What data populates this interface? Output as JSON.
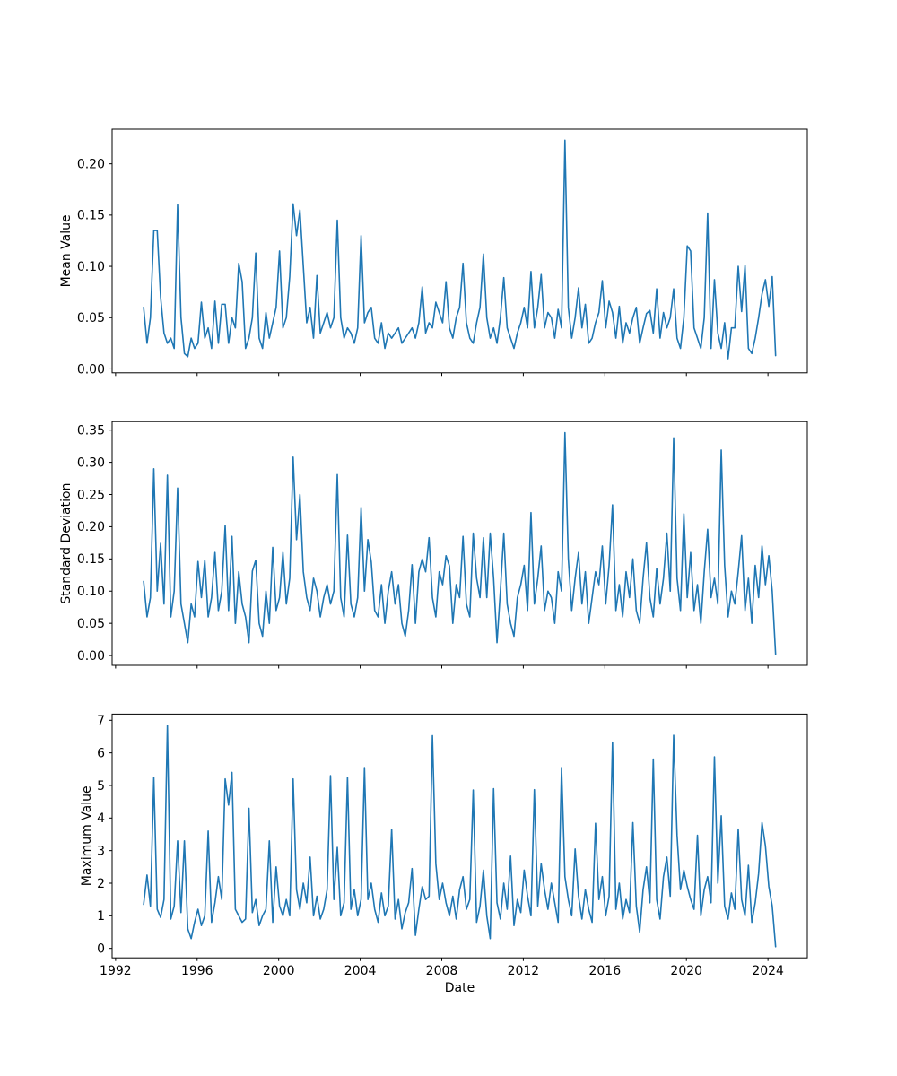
{
  "figure": {
    "background": "#ffffff",
    "line_color": "#1f77b4",
    "axis_color": "#000000",
    "xlabel": "Date",
    "xlim": [
      1991.83,
      2025.93
    ],
    "xticks": [
      1992,
      1996,
      2000,
      2004,
      2008,
      2012,
      2016,
      2020,
      2024
    ],
    "xtick_labels": [
      "1992",
      "1996",
      "2000",
      "2004",
      "2008",
      "2012",
      "2016",
      "2020",
      "2024"
    ]
  },
  "chart_data": [
    {
      "type": "line",
      "title": "",
      "xlabel": "",
      "ylabel": "Mean Value",
      "legend": null,
      "grid": false,
      "line_color": "#1f77b4",
      "xlim": [
        1991.83,
        2025.93
      ],
      "ylim": [
        -0.0038,
        0.2338
      ],
      "yticks": [
        0.0,
        0.05,
        0.1,
        0.15,
        0.2
      ],
      "ytick_labels": [
        "0.00",
        "0.05",
        "0.10",
        "0.15",
        "0.20"
      ],
      "xticks": [
        1992,
        1996,
        2000,
        2004,
        2008,
        2012,
        2016,
        2020,
        2024
      ],
      "xtick_labels": [
        "1992",
        "1996",
        "2000",
        "2004",
        "2008",
        "2012",
        "2016",
        "2020",
        "2024"
      ],
      "show_xtick_labels": false,
      "x_unit": "decimal_year",
      "x_start": 1993.375,
      "x_step": 0.1666667,
      "values": [
        0.06,
        0.025,
        0.05,
        0.135,
        0.135,
        0.07,
        0.035,
        0.025,
        0.03,
        0.02,
        0.16,
        0.05,
        0.015,
        0.012,
        0.03,
        0.02,
        0.025,
        0.065,
        0.03,
        0.04,
        0.02,
        0.066,
        0.025,
        0.063,
        0.063,
        0.025,
        0.05,
        0.04,
        0.103,
        0.085,
        0.02,
        0.03,
        0.05,
        0.113,
        0.03,
        0.02,
        0.055,
        0.03,
        0.045,
        0.06,
        0.115,
        0.04,
        0.05,
        0.09,
        0.161,
        0.13,
        0.155,
        0.1,
        0.045,
        0.06,
        0.03,
        0.091,
        0.035,
        0.045,
        0.055,
        0.04,
        0.05,
        0.145,
        0.05,
        0.03,
        0.04,
        0.035,
        0.025,
        0.04,
        0.13,
        0.045,
        0.055,
        0.06,
        0.03,
        0.025,
        0.045,
        0.02,
        0.035,
        0.03,
        0.035,
        0.04,
        0.025,
        0.03,
        0.035,
        0.04,
        0.03,
        0.045,
        0.08,
        0.035,
        0.045,
        0.04,
        0.065,
        0.055,
        0.045,
        0.085,
        0.04,
        0.03,
        0.05,
        0.06,
        0.103,
        0.045,
        0.03,
        0.025,
        0.045,
        0.06,
        0.112,
        0.05,
        0.03,
        0.04,
        0.025,
        0.05,
        0.089,
        0.04,
        0.03,
        0.02,
        0.035,
        0.045,
        0.06,
        0.04,
        0.095,
        0.04,
        0.06,
        0.092,
        0.04,
        0.055,
        0.05,
        0.03,
        0.058,
        0.04,
        0.223,
        0.06,
        0.03,
        0.05,
        0.079,
        0.04,
        0.063,
        0.025,
        0.03,
        0.045,
        0.055,
        0.086,
        0.04,
        0.066,
        0.055,
        0.03,
        0.061,
        0.025,
        0.045,
        0.035,
        0.05,
        0.06,
        0.025,
        0.04,
        0.054,
        0.057,
        0.035,
        0.078,
        0.03,
        0.055,
        0.04,
        0.05,
        0.078,
        0.03,
        0.02,
        0.05,
        0.12,
        0.115,
        0.04,
        0.03,
        0.02,
        0.05,
        0.152,
        0.02,
        0.087,
        0.035,
        0.02,
        0.045,
        0.01,
        0.04,
        0.04,
        0.1,
        0.056,
        0.101,
        0.02,
        0.015,
        0.03,
        0.05,
        0.073,
        0.087,
        0.061,
        0.09,
        0.013
      ]
    },
    {
      "type": "line",
      "title": "",
      "xlabel": "",
      "ylabel": "Standard Deviation",
      "legend": null,
      "grid": false,
      "line_color": "#1f77b4",
      "xlim": [
        1991.83,
        2025.93
      ],
      "ylim": [
        -0.0152,
        0.3632
      ],
      "yticks": [
        0.0,
        0.05,
        0.1,
        0.15,
        0.2,
        0.25,
        0.3,
        0.35
      ],
      "ytick_labels": [
        "0.00",
        "0.05",
        "0.10",
        "0.15",
        "0.20",
        "0.25",
        "0.30",
        "0.35"
      ],
      "xticks": [
        1992,
        1996,
        2000,
        2004,
        2008,
        2012,
        2016,
        2020,
        2024
      ],
      "xtick_labels": [
        "1992",
        "1996",
        "2000",
        "2004",
        "2008",
        "2012",
        "2016",
        "2020",
        "2024"
      ],
      "show_xtick_labels": false,
      "x_unit": "decimal_year",
      "x_start": 1993.375,
      "x_step": 0.1666667,
      "values": [
        0.115,
        0.06,
        0.09,
        0.29,
        0.1,
        0.174,
        0.08,
        0.28,
        0.06,
        0.1,
        0.26,
        0.08,
        0.05,
        0.02,
        0.08,
        0.06,
        0.146,
        0.09,
        0.148,
        0.06,
        0.09,
        0.16,
        0.07,
        0.1,
        0.202,
        0.07,
        0.185,
        0.05,
        0.13,
        0.08,
        0.06,
        0.02,
        0.131,
        0.148,
        0.05,
        0.03,
        0.1,
        0.05,
        0.168,
        0.07,
        0.09,
        0.16,
        0.08,
        0.12,
        0.308,
        0.18,
        0.25,
        0.13,
        0.09,
        0.07,
        0.12,
        0.1,
        0.06,
        0.09,
        0.11,
        0.08,
        0.1,
        0.281,
        0.09,
        0.06,
        0.187,
        0.08,
        0.06,
        0.09,
        0.23,
        0.1,
        0.18,
        0.145,
        0.07,
        0.06,
        0.11,
        0.05,
        0.1,
        0.13,
        0.08,
        0.11,
        0.05,
        0.03,
        0.07,
        0.141,
        0.05,
        0.13,
        0.15,
        0.13,
        0.183,
        0.09,
        0.06,
        0.13,
        0.11,
        0.155,
        0.139,
        0.05,
        0.11,
        0.09,
        0.185,
        0.08,
        0.06,
        0.19,
        0.12,
        0.09,
        0.183,
        0.09,
        0.19,
        0.12,
        0.02,
        0.1,
        0.19,
        0.08,
        0.05,
        0.03,
        0.09,
        0.11,
        0.14,
        0.07,
        0.222,
        0.08,
        0.12,
        0.17,
        0.07,
        0.1,
        0.09,
        0.05,
        0.13,
        0.1,
        0.346,
        0.15,
        0.07,
        0.12,
        0.16,
        0.08,
        0.13,
        0.05,
        0.09,
        0.13,
        0.11,
        0.17,
        0.08,
        0.14,
        0.234,
        0.07,
        0.11,
        0.06,
        0.13,
        0.09,
        0.15,
        0.07,
        0.05,
        0.12,
        0.175,
        0.09,
        0.06,
        0.135,
        0.08,
        0.12,
        0.19,
        0.1,
        0.338,
        0.12,
        0.07,
        0.22,
        0.09,
        0.16,
        0.07,
        0.11,
        0.05,
        0.13,
        0.196,
        0.09,
        0.12,
        0.08,
        0.319,
        0.14,
        0.06,
        0.1,
        0.08,
        0.13,
        0.186,
        0.07,
        0.12,
        0.05,
        0.14,
        0.09,
        0.17,
        0.11,
        0.155,
        0.1,
        0.002
      ]
    },
    {
      "type": "line",
      "title": "",
      "xlabel": "Date",
      "ylabel": "Maximum Value",
      "legend": null,
      "grid": false,
      "line_color": "#1f77b4",
      "xlim": [
        1991.83,
        2025.93
      ],
      "ylim": [
        -0.29,
        7.19
      ],
      "yticks": [
        0,
        1,
        2,
        3,
        4,
        5,
        6,
        7
      ],
      "ytick_labels": [
        "0",
        "1",
        "2",
        "3",
        "4",
        "5",
        "6",
        "7"
      ],
      "xticks": [
        1992,
        1996,
        2000,
        2004,
        2008,
        2012,
        2016,
        2020,
        2024
      ],
      "xtick_labels": [
        "1992",
        "1996",
        "2000",
        "2004",
        "2008",
        "2012",
        "2016",
        "2020",
        "2024"
      ],
      "show_xtick_labels": true,
      "x_unit": "decimal_year",
      "x_start": 1993.375,
      "x_step": 0.1666667,
      "values": [
        1.35,
        2.25,
        1.3,
        5.25,
        1.2,
        0.95,
        1.5,
        6.85,
        0.9,
        1.3,
        3.3,
        1.1,
        3.3,
        0.6,
        0.3,
        0.8,
        1.2,
        0.7,
        1.0,
        3.6,
        0.8,
        1.4,
        2.2,
        1.5,
        5.2,
        4.4,
        5.4,
        1.2,
        1.0,
        0.8,
        0.9,
        4.3,
        1.1,
        1.5,
        0.7,
        1.0,
        1.2,
        3.3,
        0.8,
        2.5,
        1.3,
        1.0,
        1.5,
        1.0,
        5.2,
        1.8,
        1.2,
        2.0,
        1.4,
        2.8,
        1.0,
        1.6,
        0.9,
        1.2,
        1.8,
        5.3,
        1.5,
        3.1,
        1.0,
        1.4,
        5.25,
        1.2,
        1.8,
        1.0,
        1.5,
        5.55,
        1.5,
        2.0,
        1.2,
        0.8,
        1.7,
        1.0,
        1.3,
        3.65,
        0.9,
        1.5,
        0.6,
        1.1,
        1.4,
        2.45,
        0.4,
        1.2,
        1.9,
        1.5,
        1.6,
        6.53,
        2.6,
        1.5,
        2.0,
        1.4,
        1.0,
        1.6,
        0.9,
        1.8,
        2.2,
        1.2,
        1.5,
        4.86,
        0.8,
        1.3,
        2.4,
        1.0,
        0.3,
        4.9,
        1.4,
        0.9,
        2.0,
        1.2,
        2.83,
        0.7,
        1.5,
        1.1,
        2.4,
        1.6,
        1.0,
        4.87,
        1.3,
        2.6,
        1.8,
        1.2,
        2.0,
        1.4,
        0.8,
        5.55,
        2.2,
        1.5,
        1.0,
        3.05,
        1.6,
        0.9,
        1.8,
        1.2,
        0.8,
        3.84,
        1.5,
        2.2,
        1.0,
        1.6,
        6.33,
        1.2,
        2.0,
        0.9,
        1.5,
        1.1,
        3.86,
        1.3,
        0.5,
        1.8,
        2.5,
        1.4,
        5.81,
        1.5,
        0.9,
        2.2,
        2.8,
        1.6,
        6.54,
        3.47,
        1.8,
        2.4,
        1.9,
        1.5,
        1.2,
        3.47,
        1.0,
        1.8,
        2.2,
        1.4,
        5.88,
        2.0,
        4.07,
        1.3,
        0.9,
        1.7,
        1.2,
        3.66,
        1.5,
        1.0,
        2.55,
        0.8,
        1.4,
        2.3,
        3.86,
        3.15,
        1.9,
        1.3,
        0.05
      ]
    }
  ]
}
